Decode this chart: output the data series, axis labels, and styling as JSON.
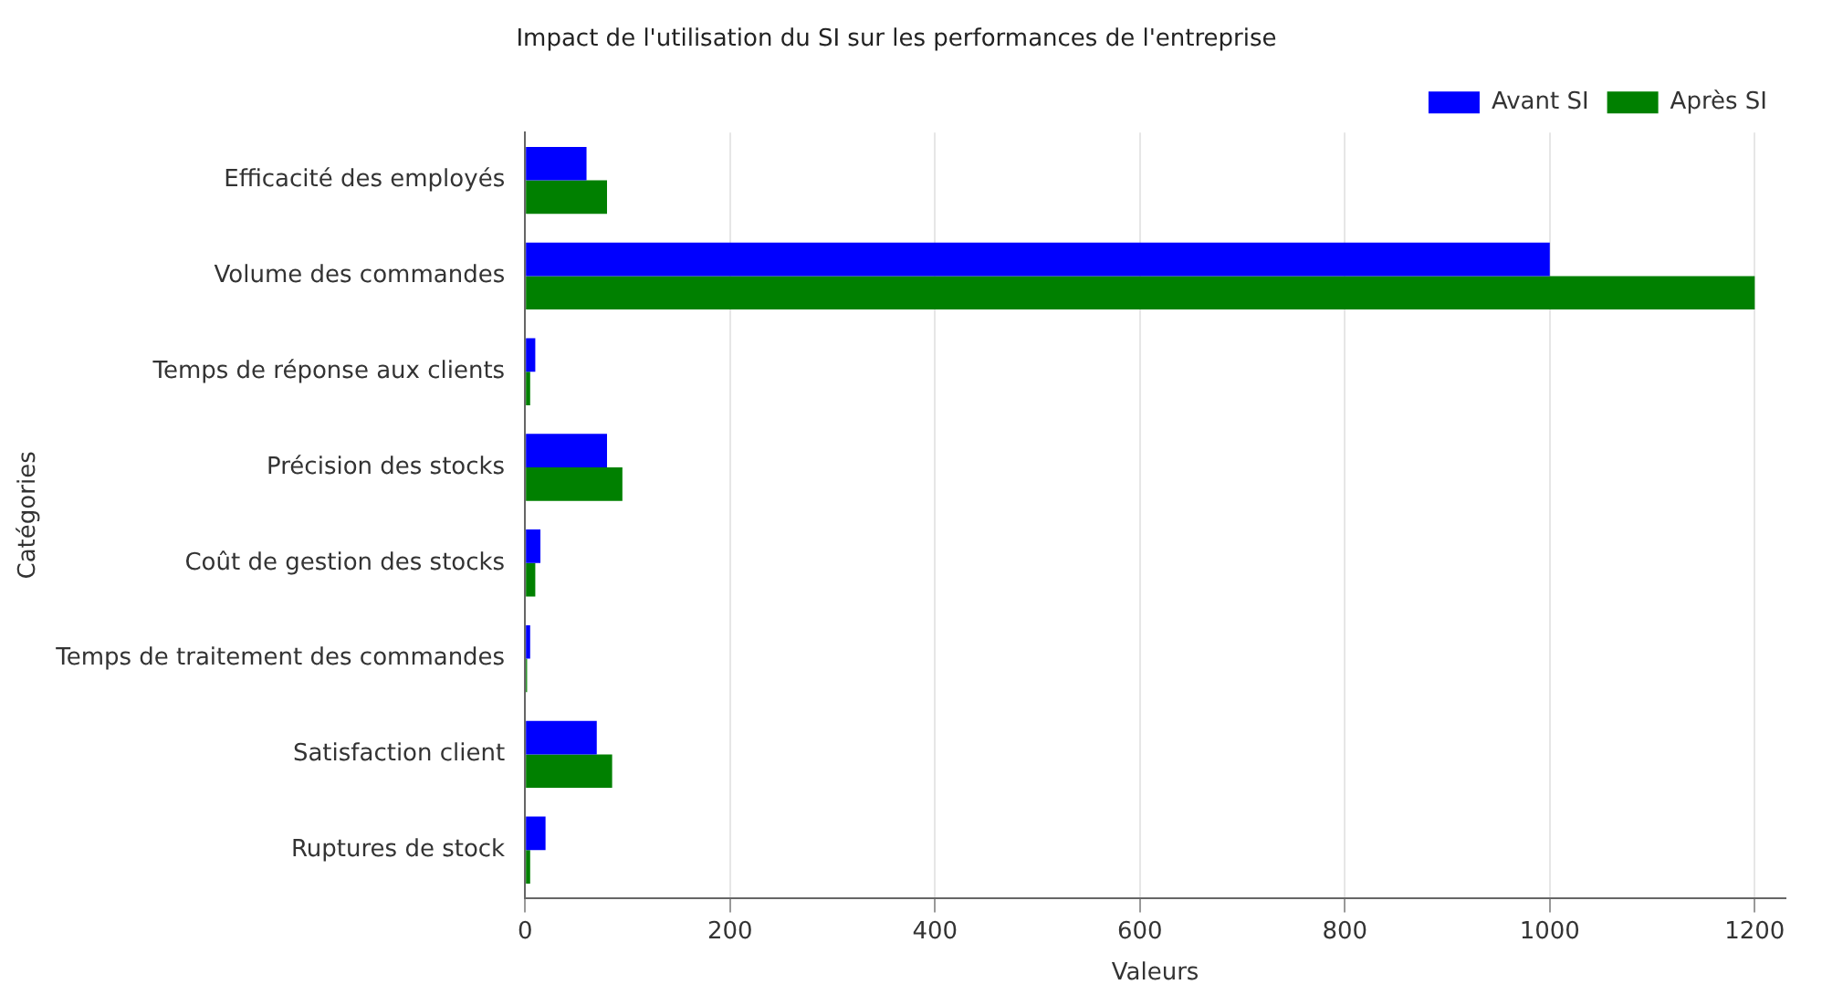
{
  "chart_data": {
    "type": "bar",
    "orientation": "horizontal",
    "title": "Impact de l'utilisation du SI sur les performances de l'entreprise",
    "xlabel": "Valeurs",
    "ylabel": "Catégories",
    "categories": [
      "Efficacité des employés",
      "Volume des commandes",
      "Temps de réponse aux clients",
      "Précision des stocks",
      "Coût de gestion des stocks",
      "Temps de traitement des commandes",
      "Satisfaction client",
      "Ruptures de stock"
    ],
    "series": [
      {
        "name": "Avant SI",
        "color": "#0000ff",
        "values": [
          60,
          1000,
          10,
          80,
          15,
          5,
          70,
          20
        ]
      },
      {
        "name": "Après SI",
        "color": "#008000",
        "values": [
          80,
          1200,
          5,
          95,
          10,
          2,
          85,
          5
        ]
      }
    ],
    "xlim": [
      0,
      1230
    ],
    "xticks": [
      0,
      200,
      400,
      600,
      800,
      1000,
      1200
    ],
    "grid": "x",
    "legend": "top right"
  }
}
